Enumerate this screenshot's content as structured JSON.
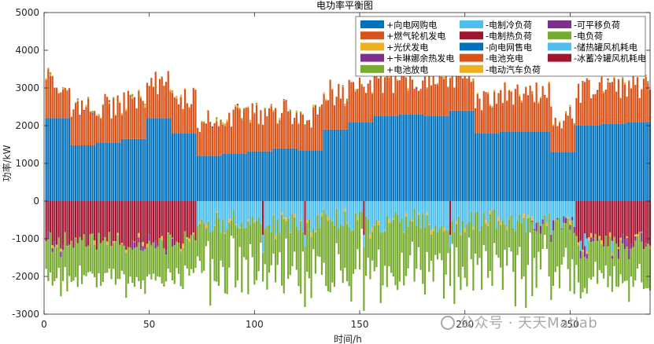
{
  "chart_data": {
    "type": "bar",
    "stacked": true,
    "title": "电功率平衡图",
    "xlabel": "时间/h",
    "ylabel": "功率/kW",
    "xlim": [
      0,
      288
    ],
    "ylim": [
      -3000,
      5000
    ],
    "xticks": [
      0,
      50,
      100,
      150,
      200,
      250
    ],
    "yticks": [
      -3000,
      -2000,
      -1000,
      0,
      1000,
      2000,
      3000,
      4000,
      5000
    ],
    "legend_position": "top-right",
    "segments_hours": [
      {
        "start": 1,
        "end": 12,
        "grid": 2200
      },
      {
        "start": 13,
        "end": 24,
        "grid": 1480
      },
      {
        "start": 25,
        "end": 36,
        "grid": 1550
      },
      {
        "start": 37,
        "end": 48,
        "grid": 1650
      },
      {
        "start": 49,
        "end": 60,
        "grid": 2200
      },
      {
        "start": 61,
        "end": 72,
        "grid": 1800
      },
      {
        "start": 73,
        "end": 84,
        "grid": 1200
      },
      {
        "start": 85,
        "end": 96,
        "grid": 1250
      },
      {
        "start": 97,
        "end": 108,
        "grid": 1320
      },
      {
        "start": 109,
        "end": 120,
        "grid": 1400
      },
      {
        "start": 121,
        "end": 132,
        "grid": 1350
      },
      {
        "start": 133,
        "end": 144,
        "grid": 1900
      },
      {
        "start": 145,
        "end": 156,
        "grid": 2100
      },
      {
        "start": 157,
        "end": 168,
        "grid": 2250
      },
      {
        "start": 169,
        "end": 180,
        "grid": 2300
      },
      {
        "start": 181,
        "end": 192,
        "grid": 2250
      },
      {
        "start": 193,
        "end": 204,
        "grid": 2400
      },
      {
        "start": 205,
        "end": 216,
        "grid": 1800
      },
      {
        "start": 217,
        "end": 228,
        "grid": 1850
      },
      {
        "start": 229,
        "end": 240,
        "grid": 1850
      },
      {
        "start": 241,
        "end": 252,
        "grid": 1300
      },
      {
        "start": 253,
        "end": 264,
        "grid": 2000
      },
      {
        "start": 265,
        "end": 276,
        "grid": 2050
      },
      {
        "start": 277,
        "end": 288,
        "grid": 2100
      }
    ],
    "approx_series_ranges_kw": {
      "+向电网购电": [
        1200,
        2400
      ],
      "+燃气轮机发电": [
        600,
        1300
      ],
      "+光伏发电": [
        0,
        80
      ],
      "+卡琳娜余热发电": [
        0,
        40
      ],
      "+电池放电": [
        0,
        60
      ],
      "-电制冷负荷": [
        0,
        -900
      ],
      "-电制热负荷": [
        0,
        -1300
      ],
      "-电负荷": [
        -400,
        -2400
      ],
      "-电池充电": [
        0,
        -50
      ],
      "-储热罐风机耗电": [
        0,
        -30
      ],
      "-冰蓄冷罐风机耗电": [
        0,
        -30
      ],
      "-可平移负荷": [
        0,
        -300
      ]
    },
    "legend": [
      {
        "label": "+向电网购电",
        "color": "#0072BD"
      },
      {
        "label": "-电制冷负荷",
        "color": "#4DBEEE"
      },
      {
        "label": "-可平移负荷",
        "color": "#7E2F8E"
      },
      {
        "label": "+燃气轮机发电",
        "color": "#D95319"
      },
      {
        "label": "-电制热负荷",
        "color": "#A2142F"
      },
      {
        "label": "-电负荷",
        "color": "#77AC30"
      },
      {
        "label": "+光伏发电",
        "color": "#EDB120"
      },
      {
        "label": "-向电网售电",
        "color": "#0072BD"
      },
      {
        "label": "-储热罐风机耗电",
        "color": "#4DBEEE"
      },
      {
        "label": "+卡琳娜余热发电",
        "color": "#7E2F8E"
      },
      {
        "label": "-电池充电",
        "color": "#D95319"
      },
      {
        "label": "-冰蓄冷罐风机耗电",
        "color": "#A2142F"
      },
      {
        "label": "+电池放电",
        "color": "#77AC30"
      },
      {
        "label": "-电动汽车负荷",
        "color": "#EDB120"
      }
    ]
  },
  "watermark": {
    "text": "公众号 · 天天Matlab"
  },
  "colors": {
    "grid_buy": "#0072BD",
    "gas": "#D95319",
    "pv": "#EDB120",
    "kalina": "#7E2F8E",
    "discharge": "#77AC30",
    "cool": "#4DBEEE",
    "heat": "#A2142F",
    "load": "#77AC30",
    "shift": "#7E2F8E",
    "ev": "#EDB120"
  }
}
